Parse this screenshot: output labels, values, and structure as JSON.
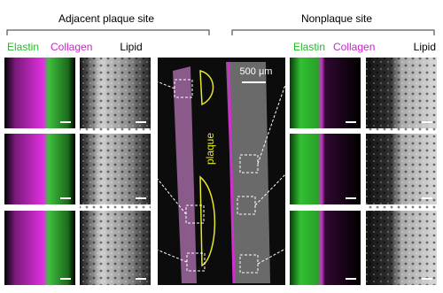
{
  "left_panel": {
    "title": "Adjacent plaque site",
    "elastin_label": "Elastin",
    "collagen_label": "Collagen",
    "lipid_label": "Lipid"
  },
  "right_panel": {
    "title": "Nonplaque site",
    "elastin_label": "Elastin",
    "collagen_label": "Collagen",
    "lipid_label": "Lipid"
  },
  "center_panel": {
    "scale_label": "500 μm",
    "plaque_label": "plaque"
  }
}
